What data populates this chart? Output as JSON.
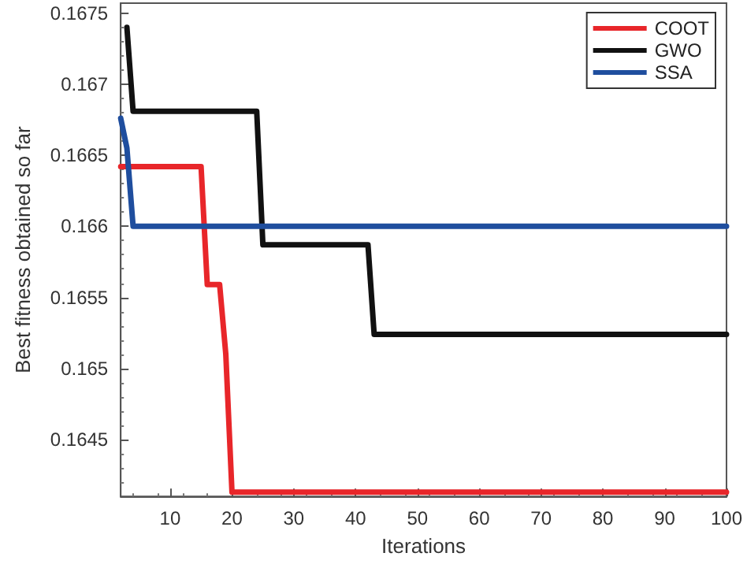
{
  "chart_data": {
    "type": "line",
    "xlabel": "Iterations",
    "ylabel": "Best fitness obtained so far",
    "xlim": [
      2,
      100
    ],
    "xticks": [
      10,
      20,
      30,
      40,
      50,
      60,
      70,
      80,
      90,
      100
    ],
    "ylim": [
      0.1641,
      0.16757
    ],
    "yticks": [
      0.1645,
      0.165,
      0.1655,
      0.166,
      0.1665,
      0.167,
      0.1675
    ],
    "grid": false,
    "legend": "top right",
    "marker": "none",
    "line_style": "solid",
    "series": [
      {
        "name": "COOT",
        "color": "#e8262a",
        "x": [
          2,
          15,
          16,
          18,
          19,
          20,
          100
        ],
        "values": [
          0.16642,
          0.16642,
          0.16559,
          0.16559,
          0.1651,
          0.16413,
          0.16413
        ]
      },
      {
        "name": "GWO",
        "color": "#111111",
        "x": [
          3,
          4,
          24,
          25,
          42,
          43,
          100
        ],
        "values": [
          0.1674,
          0.16681,
          0.16681,
          0.16587,
          0.16587,
          0.16524,
          0.16524
        ]
      },
      {
        "name": "SSA",
        "color": "#1f4e9e",
        "x": [
          2,
          3,
          4,
          100
        ],
        "values": [
          0.16676,
          0.16655,
          0.166,
          0.166
        ]
      }
    ]
  }
}
